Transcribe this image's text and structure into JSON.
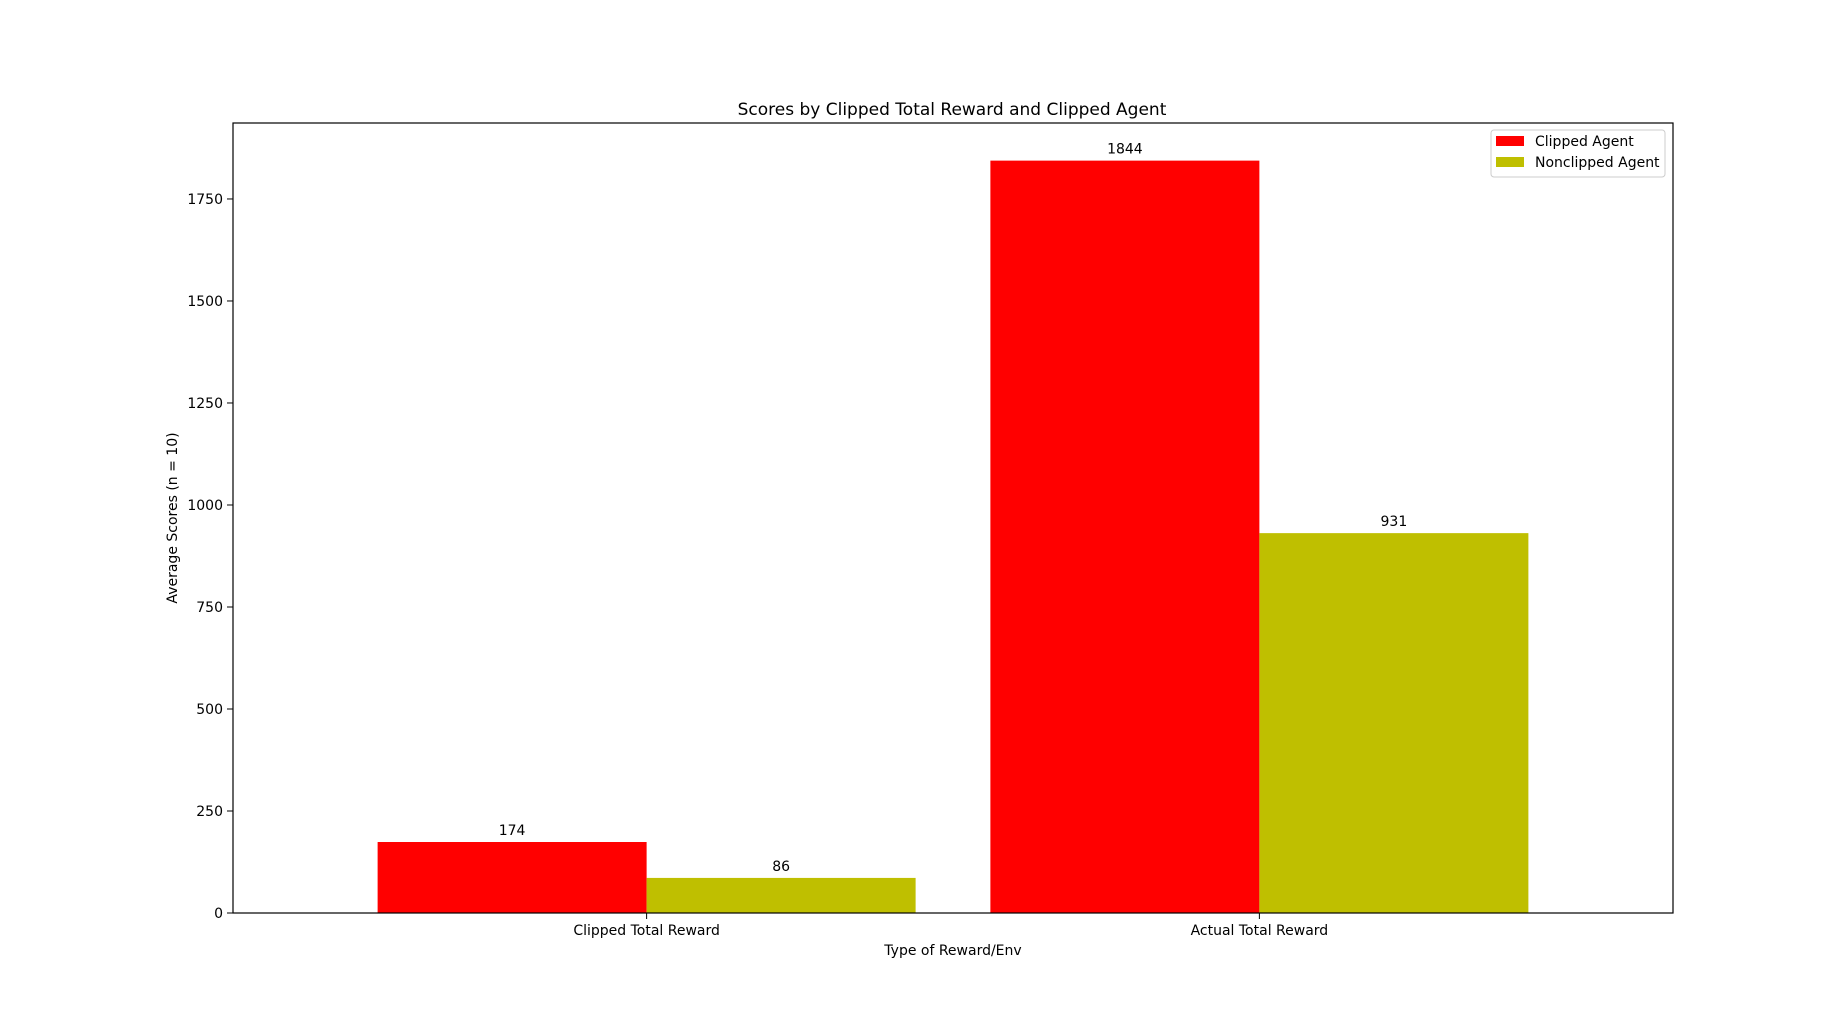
{
  "chart_data": {
    "type": "bar",
    "title": "Scores by Clipped Total Reward and Clipped Agent",
    "xlabel": "Type of Reward/Env",
    "ylabel": "Average Scores (n = 10)",
    "categories": [
      "Clipped Total Reward",
      "Actual Total Reward"
    ],
    "series": [
      {
        "name": "Clipped Agent",
        "color": "#ff0000",
        "values": [
          174,
          1844
        ]
      },
      {
        "name": "Nonclipped Agent",
        "color": "#bfbf00",
        "values": [
          86,
          931
        ]
      }
    ],
    "ylim": [
      0,
      1936.2
    ],
    "yticks": [
      0,
      250,
      500,
      750,
      1000,
      1250,
      1500,
      1750
    ],
    "bar_labels": true,
    "grid": false,
    "legend_position": "top-right"
  }
}
